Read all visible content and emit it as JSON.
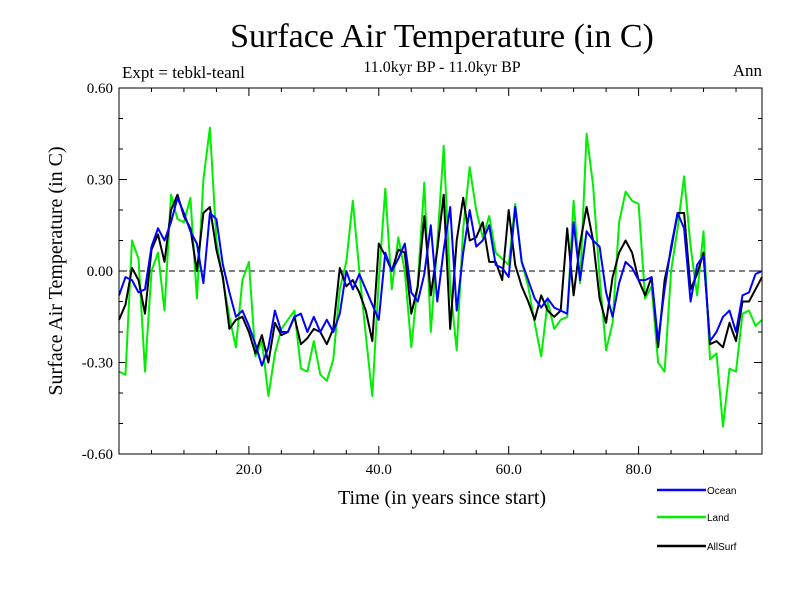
{
  "chart_data": {
    "type": "line",
    "title": "Surface Air Temperature (in C)",
    "subtitle": "11.0kyr BP - 11.0kyr BP",
    "experiment_label": "Expt = tebkl-teanl",
    "season_label": "Ann",
    "xlabel": "Time (in years since start)",
    "ylabel": "Surface Air Temperature (in C)",
    "xlim": [
      0,
      99
    ],
    "ylim": [
      -0.6,
      0.6
    ],
    "x_ticks": [
      20,
      40,
      60,
      80
    ],
    "x_tick_labels": [
      "20.0",
      "40.0",
      "60.0",
      "80.0"
    ],
    "y_ticks": [
      -0.6,
      -0.3,
      0,
      0.3,
      0.6
    ],
    "y_tick_labels": [
      "-0.60",
      "-0.30",
      "0.00",
      "0.30",
      "0.60"
    ],
    "zero_line": "dashed",
    "grid": false,
    "legend_position": "bottom-right",
    "x": [
      0,
      1,
      2,
      3,
      4,
      5,
      6,
      7,
      8,
      9,
      10,
      11,
      12,
      13,
      14,
      15,
      16,
      17,
      18,
      19,
      20,
      21,
      22,
      23,
      24,
      25,
      26,
      27,
      28,
      29,
      30,
      31,
      32,
      33,
      34,
      35,
      36,
      37,
      38,
      39,
      40,
      41,
      42,
      43,
      44,
      45,
      46,
      47,
      48,
      49,
      50,
      51,
      52,
      53,
      54,
      55,
      56,
      57,
      58,
      59,
      60,
      61,
      62,
      63,
      64,
      65,
      66,
      67,
      68,
      69,
      70,
      71,
      72,
      73,
      74,
      75,
      76,
      77,
      78,
      79,
      80,
      81,
      82,
      83,
      84,
      85,
      86,
      87,
      88,
      89,
      90,
      91,
      92,
      93,
      94,
      95,
      96,
      97,
      98,
      99
    ],
    "series": [
      {
        "name": "Ocean",
        "color": "#0000ff",
        "values": [
          -0.08,
          -0.02,
          -0.03,
          -0.07,
          -0.06,
          0.08,
          0.14,
          0.1,
          0.16,
          0.24,
          0.19,
          0.13,
          0.09,
          -0.04,
          0.19,
          0.17,
          0.02,
          -0.07,
          -0.15,
          -0.13,
          -0.18,
          -0.24,
          -0.31,
          -0.25,
          -0.13,
          -0.2,
          -0.2,
          -0.15,
          -0.14,
          -0.2,
          -0.15,
          -0.2,
          -0.16,
          -0.2,
          -0.14,
          0.0,
          -0.06,
          -0.01,
          -0.06,
          -0.11,
          -0.16,
          0.06,
          0.0,
          0.04,
          0.09,
          -0.07,
          -0.1,
          -0.01,
          0.15,
          -0.1,
          0.07,
          0.21,
          -0.13,
          0.06,
          0.2,
          0.08,
          0.1,
          0.15,
          0.02,
          0.01,
          -0.02,
          0.21,
          0.03,
          -0.03,
          -0.09,
          -0.12,
          -0.09,
          -0.12,
          -0.13,
          -0.14,
          0.16,
          -0.03,
          0.13,
          0.1,
          0.08,
          -0.07,
          -0.15,
          -0.04,
          0.03,
          0.01,
          -0.03,
          -0.03,
          -0.02,
          -0.23,
          -0.06,
          0.08,
          0.19,
          0.14,
          -0.1,
          0.02,
          0.05,
          -0.23,
          -0.2,
          -0.15,
          -0.13,
          -0.2,
          -0.08,
          -0.07,
          -0.01,
          0.0
        ]
      },
      {
        "name": "Land",
        "color": "#00ee00",
        "values": [
          -0.33,
          -0.34,
          0.1,
          0.04,
          -0.33,
          0.0,
          0.06,
          -0.13,
          0.25,
          0.17,
          0.16,
          0.24,
          -0.09,
          0.3,
          0.47,
          0.1,
          -0.03,
          -0.15,
          -0.25,
          -0.03,
          0.03,
          -0.28,
          -0.23,
          -0.41,
          -0.27,
          -0.19,
          -0.16,
          -0.13,
          -0.32,
          -0.33,
          -0.23,
          -0.34,
          -0.36,
          -0.29,
          -0.06,
          0.03,
          0.23,
          0.0,
          -0.21,
          -0.41,
          -0.03,
          0.27,
          -0.06,
          0.11,
          0.0,
          -0.25,
          -0.04,
          0.29,
          -0.2,
          0.09,
          0.41,
          -0.05,
          -0.26,
          0.14,
          0.34,
          0.2,
          0.11,
          0.18,
          0.06,
          0.04,
          0.02,
          0.22,
          0.03,
          -0.05,
          -0.17,
          -0.28,
          -0.1,
          -0.19,
          -0.16,
          -0.15,
          0.23,
          -0.04,
          0.45,
          0.28,
          -0.02,
          -0.26,
          -0.17,
          0.16,
          0.26,
          0.23,
          0.22,
          -0.09,
          -0.05,
          -0.3,
          -0.33,
          0.0,
          0.14,
          0.31,
          0.08,
          -0.08,
          0.13,
          -0.29,
          -0.27,
          -0.51,
          -0.32,
          -0.33,
          -0.14,
          -0.13,
          -0.18,
          -0.16
        ]
      },
      {
        "name": "AllSurf",
        "color": "#000000",
        "values": [
          -0.16,
          -0.11,
          0.01,
          -0.03,
          -0.14,
          0.07,
          0.12,
          0.03,
          0.2,
          0.25,
          0.18,
          0.14,
          0.0,
          0.19,
          0.21,
          0.07,
          -0.02,
          -0.19,
          -0.16,
          -0.15,
          -0.2,
          -0.27,
          -0.21,
          -0.3,
          -0.17,
          -0.21,
          -0.2,
          -0.15,
          -0.24,
          -0.22,
          -0.19,
          -0.2,
          -0.24,
          -0.19,
          0.01,
          -0.05,
          -0.03,
          -0.07,
          -0.13,
          -0.23,
          0.09,
          0.05,
          0.0,
          0.07,
          0.06,
          -0.14,
          -0.05,
          0.18,
          -0.08,
          0.07,
          0.25,
          -0.19,
          0.1,
          0.24,
          0.1,
          0.11,
          0.16,
          0.03,
          0.03,
          -0.03,
          0.2,
          0.02,
          -0.05,
          -0.1,
          -0.16,
          -0.08,
          -0.13,
          -0.15,
          -0.13,
          0.14,
          -0.08,
          0.09,
          0.21,
          0.1,
          -0.09,
          -0.17,
          -0.02,
          0.06,
          0.1,
          0.06,
          -0.03,
          -0.08,
          -0.02,
          -0.25,
          -0.03,
          0.07,
          0.19,
          0.19,
          -0.06,
          -0.01,
          0.06,
          -0.24,
          -0.23,
          -0.25,
          -0.17,
          -0.23,
          -0.1,
          -0.1,
          -0.06,
          -0.02
        ]
      }
    ]
  }
}
